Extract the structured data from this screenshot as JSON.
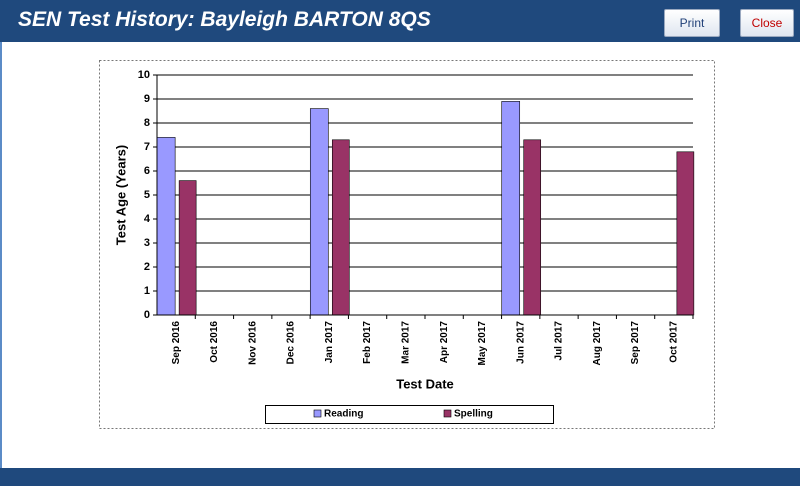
{
  "header": {
    "title": "SEN Test History: Bayleigh BARTON 8QS",
    "buttons": [
      "Print",
      "Close"
    ]
  },
  "chart_data": {
    "type": "bar",
    "categories": [
      "Sep 2016",
      "Oct 2016",
      "Nov 2016",
      "Dec 2016",
      "Jan 2017",
      "Feb 2017",
      "Mar 2017",
      "Apr 2017",
      "May 2017",
      "Jun 2017",
      "Jul 2017",
      "Aug 2017",
      "Sep 2017",
      "Oct 2017"
    ],
    "series": [
      {
        "name": "Reading",
        "color": "#9999ff",
        "values": [
          7.4,
          null,
          null,
          null,
          8.6,
          null,
          null,
          null,
          null,
          8.9,
          null,
          null,
          null,
          null
        ]
      },
      {
        "name": "Spelling",
        "color": "#993366",
        "values": [
          5.6,
          null,
          null,
          null,
          7.3,
          null,
          null,
          null,
          null,
          7.3,
          null,
          null,
          null,
          6.8
        ]
      }
    ],
    "ylabel": "Test Age (Years)",
    "xlabel": "Test Date",
    "ylim": [
      0,
      10
    ],
    "yticks": [
      0,
      1,
      2,
      3,
      4,
      5,
      6,
      7,
      8,
      9,
      10
    ],
    "grid": true,
    "legend": "bottom"
  }
}
